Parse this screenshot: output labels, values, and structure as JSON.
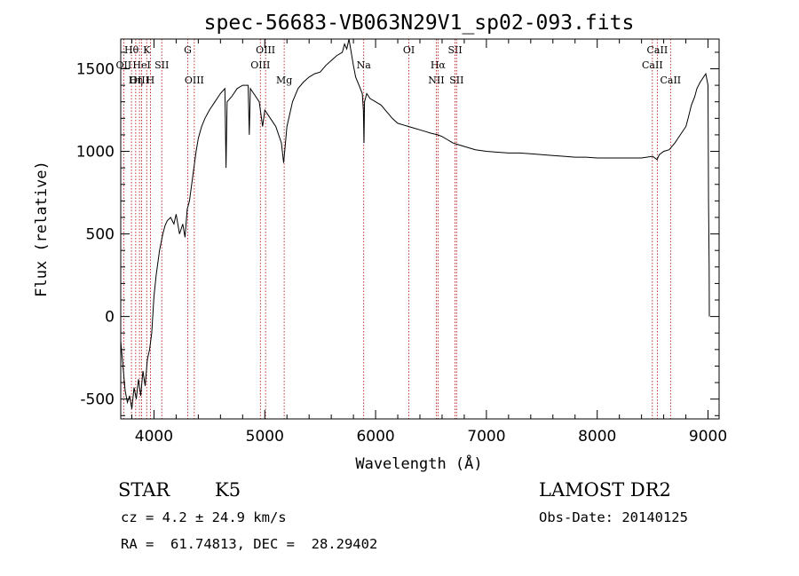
{
  "chart_data": {
    "type": "line",
    "title": "spec-56683-VB063N29V1_sp02-093.fits",
    "xlabel": "Wavelength (Å)",
    "ylabel": "Flux (relative)",
    "xlim": [
      3700,
      9100
    ],
    "ylim": [
      -620,
      1680
    ],
    "x_ticks": [
      4000,
      5000,
      6000,
      7000,
      8000,
      9000
    ],
    "y_ticks": [
      -500,
      0,
      500,
      1000,
      1500
    ],
    "grid": false,
    "series": [
      {
        "x": [
          3700,
          3720,
          3740,
          3760,
          3780,
          3800,
          3820,
          3840,
          3860,
          3880,
          3900,
          3920,
          3940,
          3960,
          3980,
          4000,
          4020,
          4050,
          4080,
          4100,
          4120,
          4150,
          4180,
          4200,
          4230,
          4260,
          4280,
          4300,
          4320,
          4340,
          4360,
          4380,
          4400,
          4430,
          4460,
          4500,
          4550,
          4600,
          4640,
          4650,
          4660,
          4700,
          4750,
          4800,
          4850,
          4860,
          4870,
          4900,
          4950,
          4980,
          5000,
          5050,
          5100,
          5150,
          5170,
          5180,
          5200,
          5250,
          5300,
          5350,
          5400,
          5450,
          5500,
          5550,
          5600,
          5650,
          5700,
          5720,
          5740,
          5760,
          5780,
          5800,
          5820,
          5850,
          5880,
          5890,
          5895,
          5900,
          5920,
          5950,
          6000,
          6050,
          6100,
          6150,
          6200,
          6250,
          6300,
          6350,
          6400,
          6450,
          6500,
          6560,
          6600,
          6650,
          6700,
          6750,
          6800,
          6900,
          7000,
          7100,
          7200,
          7300,
          7400,
          7500,
          7600,
          7700,
          7800,
          7900,
          8000,
          8100,
          8200,
          8300,
          8400,
          8500,
          8540,
          8560,
          8600,
          8650,
          8700,
          8750,
          8800,
          8820,
          8850,
          8880,
          8900,
          8930,
          8960,
          8980,
          9000,
          9005,
          9010,
          9012
        ],
        "values": [
          -150,
          -300,
          -450,
          -520,
          -480,
          -560,
          -430,
          -500,
          -380,
          -480,
          -330,
          -420,
          -260,
          -200,
          -100,
          120,
          250,
          400,
          500,
          550,
          580,
          600,
          560,
          620,
          500,
          560,
          480,
          650,
          700,
          800,
          900,
          1000,
          1080,
          1150,
          1200,
          1250,
          1300,
          1350,
          1380,
          900,
          1300,
          1330,
          1380,
          1400,
          1400,
          1100,
          1380,
          1350,
          1300,
          1150,
          1250,
          1200,
          1150,
          1050,
          930,
          1000,
          1150,
          1300,
          1380,
          1420,
          1450,
          1470,
          1480,
          1520,
          1550,
          1580,
          1600,
          1650,
          1620,
          1680,
          1600,
          1520,
          1450,
          1400,
          1350,
          1250,
          1050,
          1300,
          1350,
          1320,
          1300,
          1280,
          1240,
          1200,
          1170,
          1160,
          1150,
          1140,
          1130,
          1120,
          1110,
          1100,
          1090,
          1070,
          1050,
          1040,
          1030,
          1010,
          1000,
          995,
          990,
          990,
          985,
          980,
          975,
          970,
          965,
          965,
          960,
          960,
          960,
          960,
          960,
          970,
          950,
          980,
          1000,
          1010,
          1050,
          1100,
          1150,
          1200,
          1280,
          1330,
          1380,
          1420,
          1450,
          1470,
          1400,
          700,
          300,
          0
        ]
      }
    ],
    "lines": [
      {
        "label": "Hθ",
        "x": 3797,
        "row": 1
      },
      {
        "label": "OII",
        "x": 3727,
        "row": 2
      },
      {
        "label": "OIII",
        "x": 3869,
        "row": 3
      },
      {
        "label": "Hη",
        "x": 3835,
        "row": 3
      },
      {
        "label": "K",
        "x": 3934,
        "row": 1
      },
      {
        "label": "HeI",
        "x": 3889,
        "row": 2
      },
      {
        "label": "H",
        "x": 3968,
        "row": 3
      },
      {
        "label": "SII",
        "x": 4070,
        "row": 2
      },
      {
        "label": "G",
        "x": 4305,
        "row": 1
      },
      {
        "label": "OIII",
        "x": 4364,
        "row": 3
      },
      {
        "label": "OIII",
        "x": 5007,
        "row": 1
      },
      {
        "label": "OIII",
        "x": 4960,
        "row": 2
      },
      {
        "label": "Mg",
        "x": 5175,
        "row": 3
      },
      {
        "label": "Na",
        "x": 5893,
        "row": 2
      },
      {
        "label": "OI",
        "x": 6300,
        "row": 1
      },
      {
        "label": "Hα",
        "x": 6563,
        "row": 2
      },
      {
        "label": "NII",
        "x": 6548,
        "row": 3
      },
      {
        "label": "SII",
        "x": 6717,
        "row": 1
      },
      {
        "label": "SII",
        "x": 6731,
        "row": 3
      },
      {
        "label": "CaII",
        "x": 8542,
        "row": 1
      },
      {
        "label": "CaII",
        "x": 8498,
        "row": 2
      },
      {
        "label": "CaII",
        "x": 8662,
        "row": 3
      }
    ]
  },
  "info": {
    "class": "STAR",
    "subclass": "K5",
    "source": "LAMOST DR2",
    "redshift": "cz = 4.2 ± 24.9 km/s",
    "obs_date": "Obs-Date: 20140125",
    "coords": "RA =  61.74813, DEC =  28.29402"
  }
}
